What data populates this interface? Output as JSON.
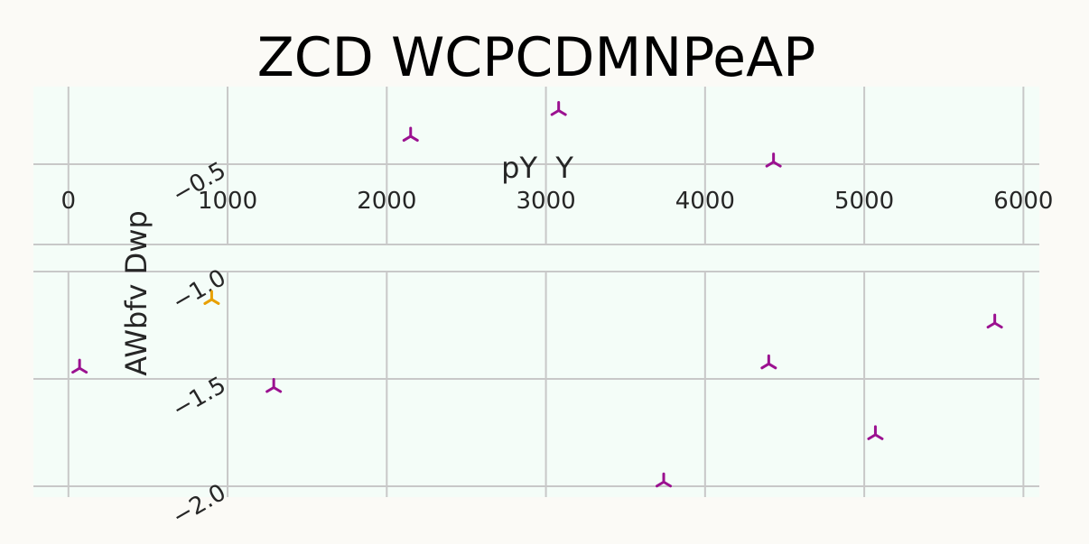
{
  "chart_data": {
    "type": "scatter",
    "title": "ZCD WCPCDMNPeAP",
    "xlabel": "pY  Y",
    "ylabel": "AWbfv Dwp",
    "xlim": [
      -220,
      6100
    ],
    "ylim": [
      -2.05,
      -0.15
    ],
    "x_ticks": [
      "0",
      "1000",
      "2000",
      "3000",
      "4000",
      "5000",
      "6000"
    ],
    "y_ticks": [
      "−0.5",
      "−1.0",
      "−1.5",
      "−2.0"
    ],
    "grid": true,
    "marker": "tri_down",
    "series": [
      {
        "color": "#9b1190",
        "x": [
          70,
          1290,
          2150,
          3080,
          3740,
          4400,
          4430,
          5070,
          5820
        ],
        "y": [
          -1.45,
          -1.54,
          -0.37,
          -0.25,
          -1.98,
          -1.43,
          -0.49,
          -1.76,
          -1.24
        ]
      },
      {
        "color": "#e8a000",
        "x": [
          900
        ],
        "y": [
          -1.13
        ]
      }
    ]
  }
}
